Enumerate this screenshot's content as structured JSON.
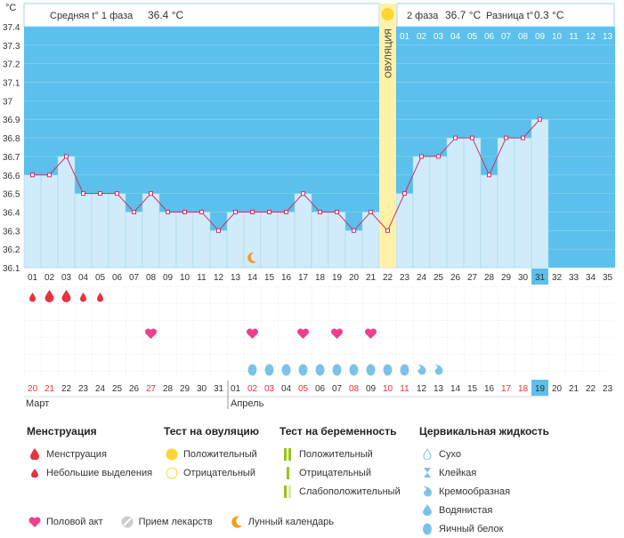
{
  "header": {
    "unit": "°C",
    "phase1_label": "Средняя t° 1 фаза",
    "phase1_value": "36.4 °C",
    "phase2_label": "2 фаза",
    "phase2_value": "36.7 °C",
    "diff_label": "Разница t°",
    "diff_value": "0.3 °C",
    "ovulation_label": "ОВУЛЯЦИЯ"
  },
  "chart_data": {
    "type": "line",
    "ylabel": "°C",
    "ylim": [
      36.1,
      37.4
    ],
    "y_ticks": [
      "37.4",
      "37.3",
      "37.2",
      "37.1",
      "37",
      "36.9",
      "36.8",
      "36.7",
      "36.6",
      "36.5",
      "36.4",
      "36.3",
      "36.2",
      "36.1"
    ],
    "cycle_days": [
      "01",
      "02",
      "03",
      "04",
      "05",
      "06",
      "07",
      "08",
      "09",
      "10",
      "11",
      "12",
      "13",
      "14",
      "15",
      "16",
      "17",
      "18",
      "19",
      "20",
      "21",
      "22",
      "23",
      "24",
      "25",
      "26",
      "27",
      "28",
      "29",
      "30",
      "31",
      "32",
      "33",
      "34",
      "35"
    ],
    "temperatures": [
      36.6,
      36.6,
      36.7,
      36.5,
      36.5,
      36.5,
      36.4,
      36.5,
      36.4,
      36.4,
      36.4,
      36.3,
      36.4,
      36.4,
      36.4,
      36.4,
      36.5,
      36.4,
      36.4,
      36.3,
      36.4,
      36.3,
      36.5,
      36.7,
      36.7,
      36.8,
      36.8,
      36.6,
      36.8,
      36.8,
      36.9
    ],
    "ovulation_day": 22,
    "current_day": 31,
    "luteal_day_labels": [
      "01",
      "02",
      "03",
      "04",
      "05",
      "06",
      "07",
      "08",
      "09",
      "10",
      "11",
      "12",
      "13"
    ],
    "calendar_dates": [
      "20",
      "21",
      "22",
      "23",
      "24",
      "25",
      "26",
      "27",
      "28",
      "29",
      "30",
      "31",
      "01",
      "02",
      "03",
      "04",
      "05",
      "06",
      "07",
      "08",
      "09",
      "10",
      "11",
      "12",
      "13",
      "14",
      "15",
      "16",
      "17",
      "18",
      "19",
      "20",
      "21",
      "22",
      "23"
    ],
    "red_dates": [
      0,
      1,
      7,
      13,
      14,
      16,
      19,
      21,
      22,
      28,
      29
    ],
    "current_date_index": 30,
    "month_march": "Март",
    "month_april": "Апрель",
    "menstruation": {
      "large": [
        1,
        2
      ],
      "small": [
        0,
        3,
        4
      ]
    },
    "intercourse_days": [
      8,
      14,
      17,
      19,
      21
    ],
    "moon_day": 14,
    "cervical_fluid": {
      "egg_white": [
        14,
        15,
        16,
        17,
        18,
        19,
        20,
        21,
        22,
        23
      ],
      "creamy": [
        24,
        25
      ]
    }
  },
  "legend": {
    "menstruation_title": "Менструация",
    "menstruation_item": "Менструация",
    "spotting_item": "Небольшие выделения",
    "ovulation_test_title": "Тест на овуляцию",
    "ovulation_positive": "Положительный",
    "ovulation_negative": "Отрицательный",
    "pregnancy_test_title": "Тест на беременность",
    "pregnancy_positive": "Положительный",
    "pregnancy_negative": "Отрицательный",
    "pregnancy_weak": "Слабоположительный",
    "fluid_title": "Цервикальная жидкость",
    "fluid_dry": "Сухо",
    "fluid_sticky": "Клейкая",
    "fluid_creamy": "Кремообразная",
    "fluid_watery": "Водянистая",
    "fluid_eggwhite": "Яичный белок",
    "intercourse": "Половой акт",
    "medication": "Прием лекарств",
    "lunar": "Лунный календарь"
  },
  "colors": {
    "sky": "#5bc0eb",
    "bar": "#d0ecfa",
    "bar_border": "#9ad4ee",
    "line": "#cc3366",
    "ovulation": "#fff1a8",
    "drop": "#e8323c",
    "heart": "#ee3f8e",
    "fluid": "#79c3ea",
    "red_date": "#e8323c"
  }
}
